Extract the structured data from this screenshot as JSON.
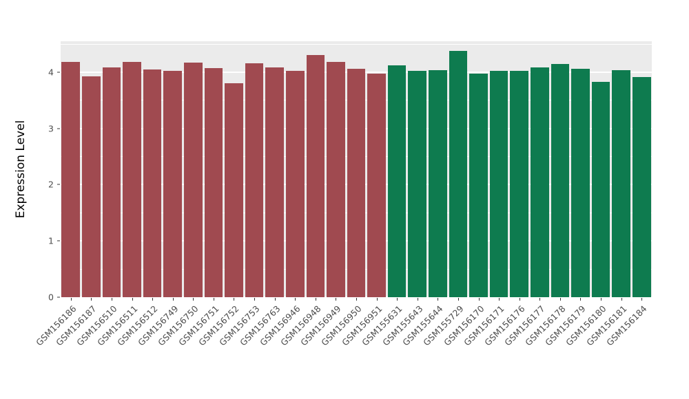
{
  "figure": {
    "background": "#FFFFFF",
    "panel_background": "#EBEBEB",
    "grid_color": "#FFFFFF",
    "tick_color": "#333333",
    "axis_text_color": "#4D4D4D"
  },
  "chart_data": {
    "type": "bar",
    "title": "",
    "xlabel": "",
    "ylabel": "Expression Level",
    "ylim": [
      0,
      4.55
    ],
    "yticks": [
      0,
      1,
      2,
      3,
      4
    ],
    "grid": true,
    "legend": "none",
    "categories": [
      "GSM156186",
      "GSM156187",
      "GSM156510",
      "GSM156511",
      "GSM156512",
      "GSM156749",
      "GSM156750",
      "GSM156751",
      "GSM156752",
      "GSM156753",
      "GSM156763",
      "GSM156946",
      "GSM156948",
      "GSM156949",
      "GSM156950",
      "GSM156951",
      "GSM155631",
      "GSM155643",
      "GSM155644",
      "GSM155729",
      "GSM156170",
      "GSM156171",
      "GSM156176",
      "GSM156177",
      "GSM156178",
      "GSM156179",
      "GSM156180",
      "GSM156181",
      "GSM156184"
    ],
    "values": [
      4.18,
      3.93,
      4.08,
      4.18,
      4.05,
      4.03,
      4.17,
      4.07,
      3.8,
      4.16,
      4.08,
      4.02,
      4.3,
      4.18,
      4.06,
      3.97,
      4.12,
      4.02,
      4.04,
      4.38,
      3.98,
      4.02,
      4.02,
      4.08,
      4.15,
      4.06,
      3.83,
      4.04,
      3.91
    ],
    "groups": [
      "maroon",
      "maroon",
      "maroon",
      "maroon",
      "maroon",
      "maroon",
      "maroon",
      "maroon",
      "maroon",
      "maroon",
      "maroon",
      "maroon",
      "maroon",
      "maroon",
      "maroon",
      "maroon",
      "green",
      "green",
      "green",
      "green",
      "green",
      "green",
      "green",
      "green",
      "green",
      "green",
      "green",
      "green",
      "green"
    ],
    "group_colors": {
      "maroon": "#A04A50",
      "green": "#0E7B4F"
    }
  }
}
